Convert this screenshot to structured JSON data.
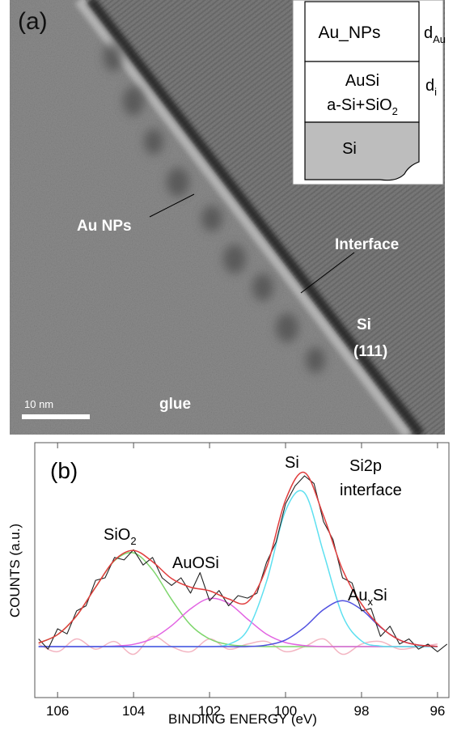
{
  "panel_a": {
    "label": "(a)",
    "annotations": {
      "au_nps": "Au NPs",
      "interface": "Interface",
      "si": "Si",
      "si_orientation": "(111)",
      "glue": "glue",
      "scale_bar": "10 nm"
    },
    "inset": {
      "layer_au": "Au_NPs",
      "layer_ausi": "AuSi",
      "layer_mix": {
        "parts": [
          "a-Si+SiO",
          "2"
        ]
      },
      "layer_si": "Si",
      "d_au": {
        "parts": [
          "d",
          "Au"
        ]
      },
      "d_i": {
        "parts": [
          "d",
          "i"
        ]
      }
    }
  },
  "chart_data": {
    "type": "line",
    "panel_label": "(b)",
    "xlabel": "BINDING ENERGY (eV)",
    "ylabel": "COUNTS (a.u.)",
    "xlim": [
      106.6,
      95.7
    ],
    "ylim": [
      0,
      100
    ],
    "xticks": [
      106,
      104,
      102,
      100,
      98,
      96
    ],
    "note": [
      "Si2p",
      "interface"
    ],
    "annotations": [
      {
        "parts": [
          "SiO",
          "2"
        ]
      },
      {
        "parts": [
          "AuOSi"
        ]
      },
      {
        "parts": [
          "Si"
        ]
      },
      {
        "parts": [
          "Au",
          "x",
          "Si"
        ]
      }
    ],
    "series": [
      {
        "color": "#f3b5c2",
        "x": [
          106.5,
          106,
          105.5,
          105,
          104.5,
          104,
          103.5,
          103,
          102.5,
          102,
          101.5,
          101,
          100.5,
          100,
          99.5,
          99,
          98.5,
          98,
          97.5,
          97,
          96.5,
          96
        ],
        "values": [
          21,
          18,
          23,
          19,
          22,
          17,
          24,
          20,
          18,
          23,
          19,
          21,
          22,
          18,
          20,
          23,
          17,
          21,
          22,
          19,
          20,
          21
        ]
      },
      {
        "color": "#7ed66c",
        "x": [
          106.5,
          106,
          105.5,
          105,
          104.5,
          104,
          103.5,
          103,
          102.5,
          102,
          101.5,
          101,
          100.5,
          100,
          99.5,
          99,
          98.5,
          98,
          97.5,
          97,
          96.5,
          96
        ],
        "values": [
          21.4,
          24.7,
          32.1,
          43.3,
          53.7,
          56.8,
          50.1,
          38.5,
          28.5,
          23.0,
          20.8,
          20.2,
          20,
          20,
          20,
          20,
          20,
          20,
          20,
          20,
          20,
          20
        ]
      },
      {
        "color": "#e264e2",
        "x": [
          106.5,
          106,
          105.5,
          105,
          104.5,
          104,
          103.5,
          103,
          102.5,
          102,
          101.5,
          101,
          100.5,
          100,
          99.5,
          99,
          98.5,
          98,
          97.5,
          97,
          96.5,
          96
        ],
        "values": [
          20,
          20,
          20,
          20,
          20.2,
          20.9,
          23.2,
          28.2,
          34.8,
          38.9,
          37.0,
          30.8,
          24.9,
          21.6,
          20.4,
          20,
          20,
          20,
          20,
          20,
          20,
          20
        ]
      },
      {
        "color": "#5ee0f0",
        "x": [
          106.5,
          106,
          105.5,
          105,
          104.5,
          104,
          103.5,
          103,
          102.5,
          102,
          101.5,
          101,
          100.5,
          100,
          99.5,
          99,
          98.5,
          98,
          97.5,
          97,
          96.5,
          96
        ],
        "values": [
          20,
          20,
          20,
          20,
          20,
          20,
          20,
          20,
          20,
          20,
          20.9,
          26.5,
          45.5,
          73.3,
          80.3,
          56.8,
          32.2,
          22.2,
          20.2,
          20,
          20,
          20
        ]
      },
      {
        "color": "#5050e0",
        "x": [
          106.5,
          106,
          105.5,
          105,
          104.5,
          104,
          103.5,
          103,
          102.5,
          102,
          101.5,
          101,
          100.5,
          100,
          99.5,
          99,
          98.5,
          98,
          97.5,
          97,
          96.5,
          96
        ],
        "values": [
          20,
          20,
          20,
          20,
          20,
          20,
          20,
          20,
          20,
          20,
          20,
          20,
          20.6,
          22.6,
          27.6,
          34.5,
          38,
          34.5,
          27.6,
          22.6,
          20.6,
          20.1
        ]
      },
      {
        "color": "#222222",
        "x": [
          106.5,
          106.25,
          106,
          105.75,
          105.5,
          105.25,
          105,
          104.75,
          104.5,
          104.25,
          104,
          103.75,
          103.5,
          103.25,
          103,
          102.75,
          102.5,
          102.25,
          102,
          101.75,
          101.5,
          101.25,
          101,
          100.75,
          100.5,
          100.25,
          100,
          99.75,
          99.5,
          99.25,
          99,
          98.75,
          98.5,
          98.25,
          98,
          97.75,
          97.5,
          97.25,
          97,
          96.75,
          96.5,
          96.25,
          96,
          95.75
        ],
        "values": [
          23,
          19,
          27,
          25,
          34,
          36,
          46,
          47,
          55,
          54,
          58,
          52,
          55,
          47,
          44,
          47,
          41,
          49,
          38,
          42,
          36,
          40,
          39,
          41,
          53,
          61,
          76,
          83,
          87,
          84,
          69,
          62,
          47,
          45,
          34,
          35,
          24,
          28,
          21,
          23,
          19,
          21,
          18,
          21
        ]
      },
      {
        "color": "#e03c3c",
        "x": [
          106.5,
          106,
          105.5,
          105,
          104.5,
          104,
          103.5,
          103,
          102.5,
          102,
          101.5,
          101,
          100.5,
          100,
          99.5,
          99,
          98.5,
          98,
          97.5,
          97,
          96.5,
          96
        ],
        "values": [
          21.4,
          24.7,
          32.1,
          43.3,
          53.9,
          57.7,
          53.3,
          46.7,
          43.3,
          41.9,
          38.7,
          37.5,
          51.0,
          77.5,
          88.3,
          71.3,
          50.2,
          36.7,
          27.8,
          22.6,
          20.6,
          20.1
        ]
      }
    ]
  }
}
